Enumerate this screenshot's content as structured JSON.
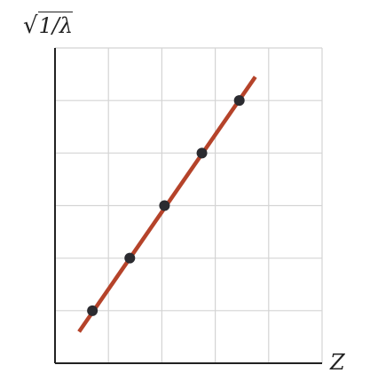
{
  "chart_data": {
    "type": "scatter",
    "title": "",
    "xlabel": "Z",
    "ylabel": "√1/λ",
    "ylabel_parts": {
      "radical": "√",
      "radicand": "1/λ"
    },
    "grid": true,
    "xlim": [
      0,
      5
    ],
    "ylim": [
      0,
      6
    ],
    "x": [
      0.7,
      1.4,
      2.05,
      2.75,
      3.45
    ],
    "y": [
      1.0,
      2.0,
      3.0,
      4.0,
      5.0
    ],
    "fit_line": {
      "x": [
        0.45,
        3.75
      ],
      "y": [
        0.6,
        5.45
      ]
    },
    "colors": {
      "points": "#2b2b30",
      "fit_line": "#b5432a",
      "grid": "#d4d4d4",
      "axes": "#222222"
    }
  }
}
